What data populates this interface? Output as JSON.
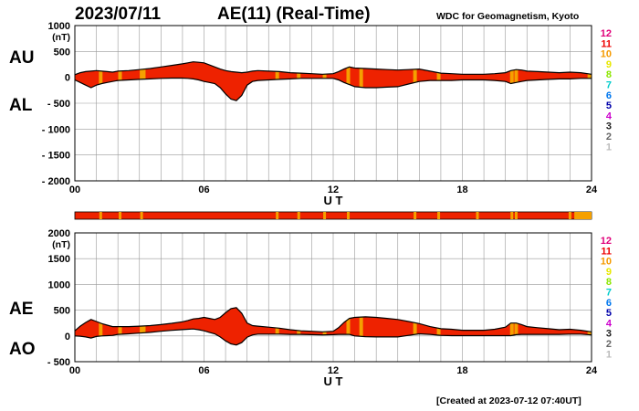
{
  "header": {
    "date": "2023/07/11",
    "title": "AE(11) (Real-Time)",
    "source": "WDC for Geomagnetism, Kyoto"
  },
  "footer": {
    "created": "[Created at 2023-07-12 07:40UT]"
  },
  "colors": {
    "fill_main": "#ee2200",
    "fill_highlight": "#f5a000",
    "grid": "#999999",
    "outline": "#000000"
  },
  "station_legend": {
    "labels": [
      "12",
      "11",
      "10",
      "9",
      "8",
      "7",
      "6",
      "5",
      "4",
      "3",
      "2",
      "1"
    ],
    "colors": [
      "#e0007a",
      "#ee0000",
      "#f59a00",
      "#e8e800",
      "#8ce600",
      "#00cccc",
      "#0077ee",
      "#0000aa",
      "#cc00cc",
      "#222222",
      "#666666",
      "#bbbbbb"
    ]
  },
  "chart_data": [
    {
      "type": "area",
      "name": "au-al",
      "series_labels": [
        "AU",
        "AL"
      ],
      "unit": "(nT)",
      "xlabel": "U T",
      "xlim": [
        0,
        24
      ],
      "xticks": [
        0,
        6,
        12,
        18,
        24
      ],
      "xtick_labels": [
        "00",
        "06",
        "12",
        "18",
        "24"
      ],
      "ylim": [
        -2000,
        1000
      ],
      "yticks": [
        1000,
        500,
        0,
        -500,
        -1000,
        -1500,
        -2000
      ],
      "ytick_labels": [
        "1000",
        "500",
        "0",
        "- 500",
        "- 1000",
        "- 1500",
        "- 2000"
      ],
      "grid": true,
      "x": [
        0,
        0.25,
        0.5,
        0.75,
        1.0,
        1.25,
        1.5,
        1.75,
        2.0,
        2.5,
        3.0,
        3.5,
        4.0,
        4.5,
        5.0,
        5.25,
        5.5,
        5.75,
        6.0,
        6.25,
        6.5,
        6.75,
        7.0,
        7.25,
        7.5,
        7.75,
        8.0,
        8.25,
        8.5,
        9.0,
        9.5,
        10.0,
        10.5,
        11.0,
        11.5,
        12.0,
        12.25,
        12.5,
        12.75,
        13.0,
        13.5,
        14.0,
        14.5,
        15.0,
        15.5,
        16.0,
        16.5,
        17.0,
        17.5,
        18.0,
        18.5,
        19.0,
        19.5,
        20.0,
        20.25,
        20.5,
        20.75,
        21.0,
        21.5,
        22.0,
        22.5,
        23.0,
        23.5,
        24.0
      ],
      "au": [
        50,
        90,
        110,
        120,
        130,
        120,
        110,
        100,
        120,
        130,
        150,
        170,
        200,
        230,
        260,
        280,
        300,
        290,
        280,
        240,
        200,
        160,
        130,
        110,
        100,
        90,
        100,
        120,
        130,
        120,
        110,
        90,
        80,
        70,
        60,
        70,
        110,
        160,
        200,
        180,
        170,
        160,
        150,
        140,
        150,
        160,
        120,
        80,
        70,
        60,
        60,
        60,
        70,
        90,
        130,
        150,
        140,
        120,
        110,
        100,
        90,
        100,
        90,
        60
      ],
      "al": [
        -50,
        -100,
        -150,
        -200,
        -150,
        -120,
        -100,
        -80,
        -60,
        -50,
        -40,
        -30,
        -20,
        -15,
        -15,
        -20,
        -30,
        -50,
        -80,
        -100,
        -120,
        -200,
        -320,
        -420,
        -450,
        -350,
        -150,
        -80,
        -60,
        -50,
        -40,
        -30,
        -20,
        -20,
        -20,
        -20,
        -50,
        -100,
        -140,
        -180,
        -200,
        -200,
        -190,
        -180,
        -130,
        -80,
        -60,
        -60,
        -60,
        -50,
        -50,
        -50,
        -60,
        -80,
        -120,
        -100,
        -80,
        -60,
        -50,
        -40,
        -30,
        -30,
        -20,
        -20
      ],
      "highlight_hours": [
        1.2,
        2.1,
        3.1,
        3.2,
        9.4,
        10.4,
        11.6,
        12.7,
        13.3,
        15.8,
        16.9,
        20.3,
        20.5,
        23.9
      ]
    },
    {
      "type": "bar",
      "name": "station-strip",
      "note_hours": [
        1.2,
        2.1,
        3.1,
        9.4,
        10.4,
        11.6,
        12.7,
        15.8,
        16.9,
        18.7,
        20.3,
        20.5,
        23.0,
        23.9
      ],
      "xlim": [
        0,
        24
      ]
    },
    {
      "type": "area",
      "name": "ae-ao",
      "series_labels": [
        "AE",
        "AO"
      ],
      "unit": "(nT)",
      "xlabel": "U T",
      "xlim": [
        0,
        24
      ],
      "xticks": [
        0,
        6,
        12,
        18,
        24
      ],
      "xtick_labels": [
        "00",
        "06",
        "12",
        "18",
        "24"
      ],
      "ylim": [
        -500,
        2000
      ],
      "yticks": [
        2000,
        1500,
        1000,
        500,
        0,
        -500
      ],
      "ytick_labels": [
        "2000",
        "1500",
        "1000",
        "500",
        "0",
        "- 500"
      ],
      "grid": true,
      "x": [
        0,
        0.25,
        0.5,
        0.75,
        1.0,
        1.25,
        1.5,
        1.75,
        2.0,
        2.5,
        3.0,
        3.5,
        4.0,
        4.5,
        5.0,
        5.25,
        5.5,
        5.75,
        6.0,
        6.25,
        6.5,
        6.75,
        7.0,
        7.25,
        7.5,
        7.75,
        8.0,
        8.25,
        8.5,
        9.0,
        9.5,
        10.0,
        10.5,
        11.0,
        11.5,
        12.0,
        12.25,
        12.5,
        12.75,
        13.0,
        13.5,
        14.0,
        14.5,
        15.0,
        15.5,
        16.0,
        16.5,
        17.0,
        17.5,
        18.0,
        18.5,
        19.0,
        19.5,
        20.0,
        20.25,
        20.5,
        20.75,
        21.0,
        21.5,
        22.0,
        22.5,
        23.0,
        23.5,
        24.0
      ],
      "ae": [
        100,
        190,
        260,
        320,
        280,
        240,
        210,
        180,
        180,
        180,
        190,
        200,
        220,
        245,
        275,
        300,
        330,
        340,
        360,
        340,
        320,
        360,
        450,
        530,
        550,
        440,
        250,
        200,
        190,
        170,
        150,
        120,
        100,
        90,
        80,
        90,
        160,
        260,
        340,
        360,
        370,
        360,
        340,
        320,
        280,
        240,
        180,
        140,
        130,
        110,
        110,
        110,
        130,
        170,
        250,
        250,
        220,
        180,
        160,
        140,
        120,
        130,
        110,
        80
      ],
      "ao": [
        0,
        -5,
        -20,
        -40,
        -10,
        0,
        5,
        10,
        30,
        40,
        55,
        70,
        90,
        108,
        123,
        130,
        135,
        120,
        100,
        70,
        40,
        -20,
        -95,
        -155,
        -175,
        -130,
        -25,
        20,
        35,
        35,
        35,
        30,
        30,
        25,
        20,
        25,
        30,
        30,
        30,
        0,
        -15,
        -20,
        -20,
        -20,
        10,
        40,
        30,
        10,
        5,
        5,
        5,
        5,
        5,
        5,
        5,
        25,
        30,
        30,
        30,
        30,
        30,
        35,
        35,
        20
      ]
    }
  ]
}
